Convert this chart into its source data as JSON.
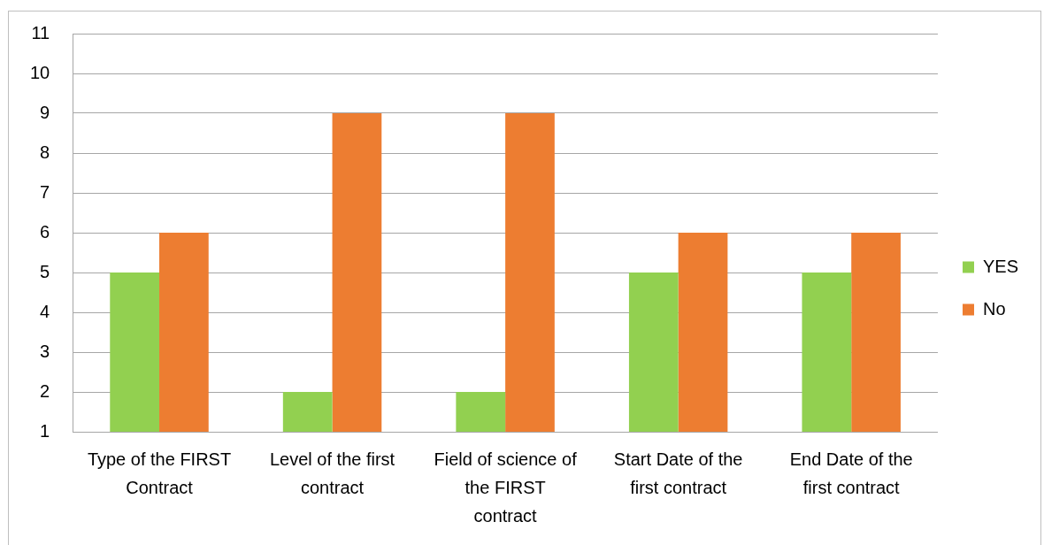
{
  "chart_data": {
    "type": "bar",
    "categories": [
      "Type of the FIRST Contract",
      "Level of the first contract",
      "Field of science of the FIRST contract",
      "Start Date of the first contract",
      "End Date of the first contract"
    ],
    "series": [
      {
        "name": "YES",
        "color": "#92d050",
        "values": [
          5,
          2,
          2,
          5,
          5
        ]
      },
      {
        "name": "No",
        "color": "#ed7d31",
        "values": [
          6,
          9,
          9,
          6,
          6
        ]
      }
    ],
    "ylim": [
      1,
      11
    ],
    "yticks": [
      1,
      2,
      3,
      4,
      5,
      6,
      7,
      8,
      9,
      10,
      11
    ],
    "grid": "y",
    "legend": "right"
  }
}
